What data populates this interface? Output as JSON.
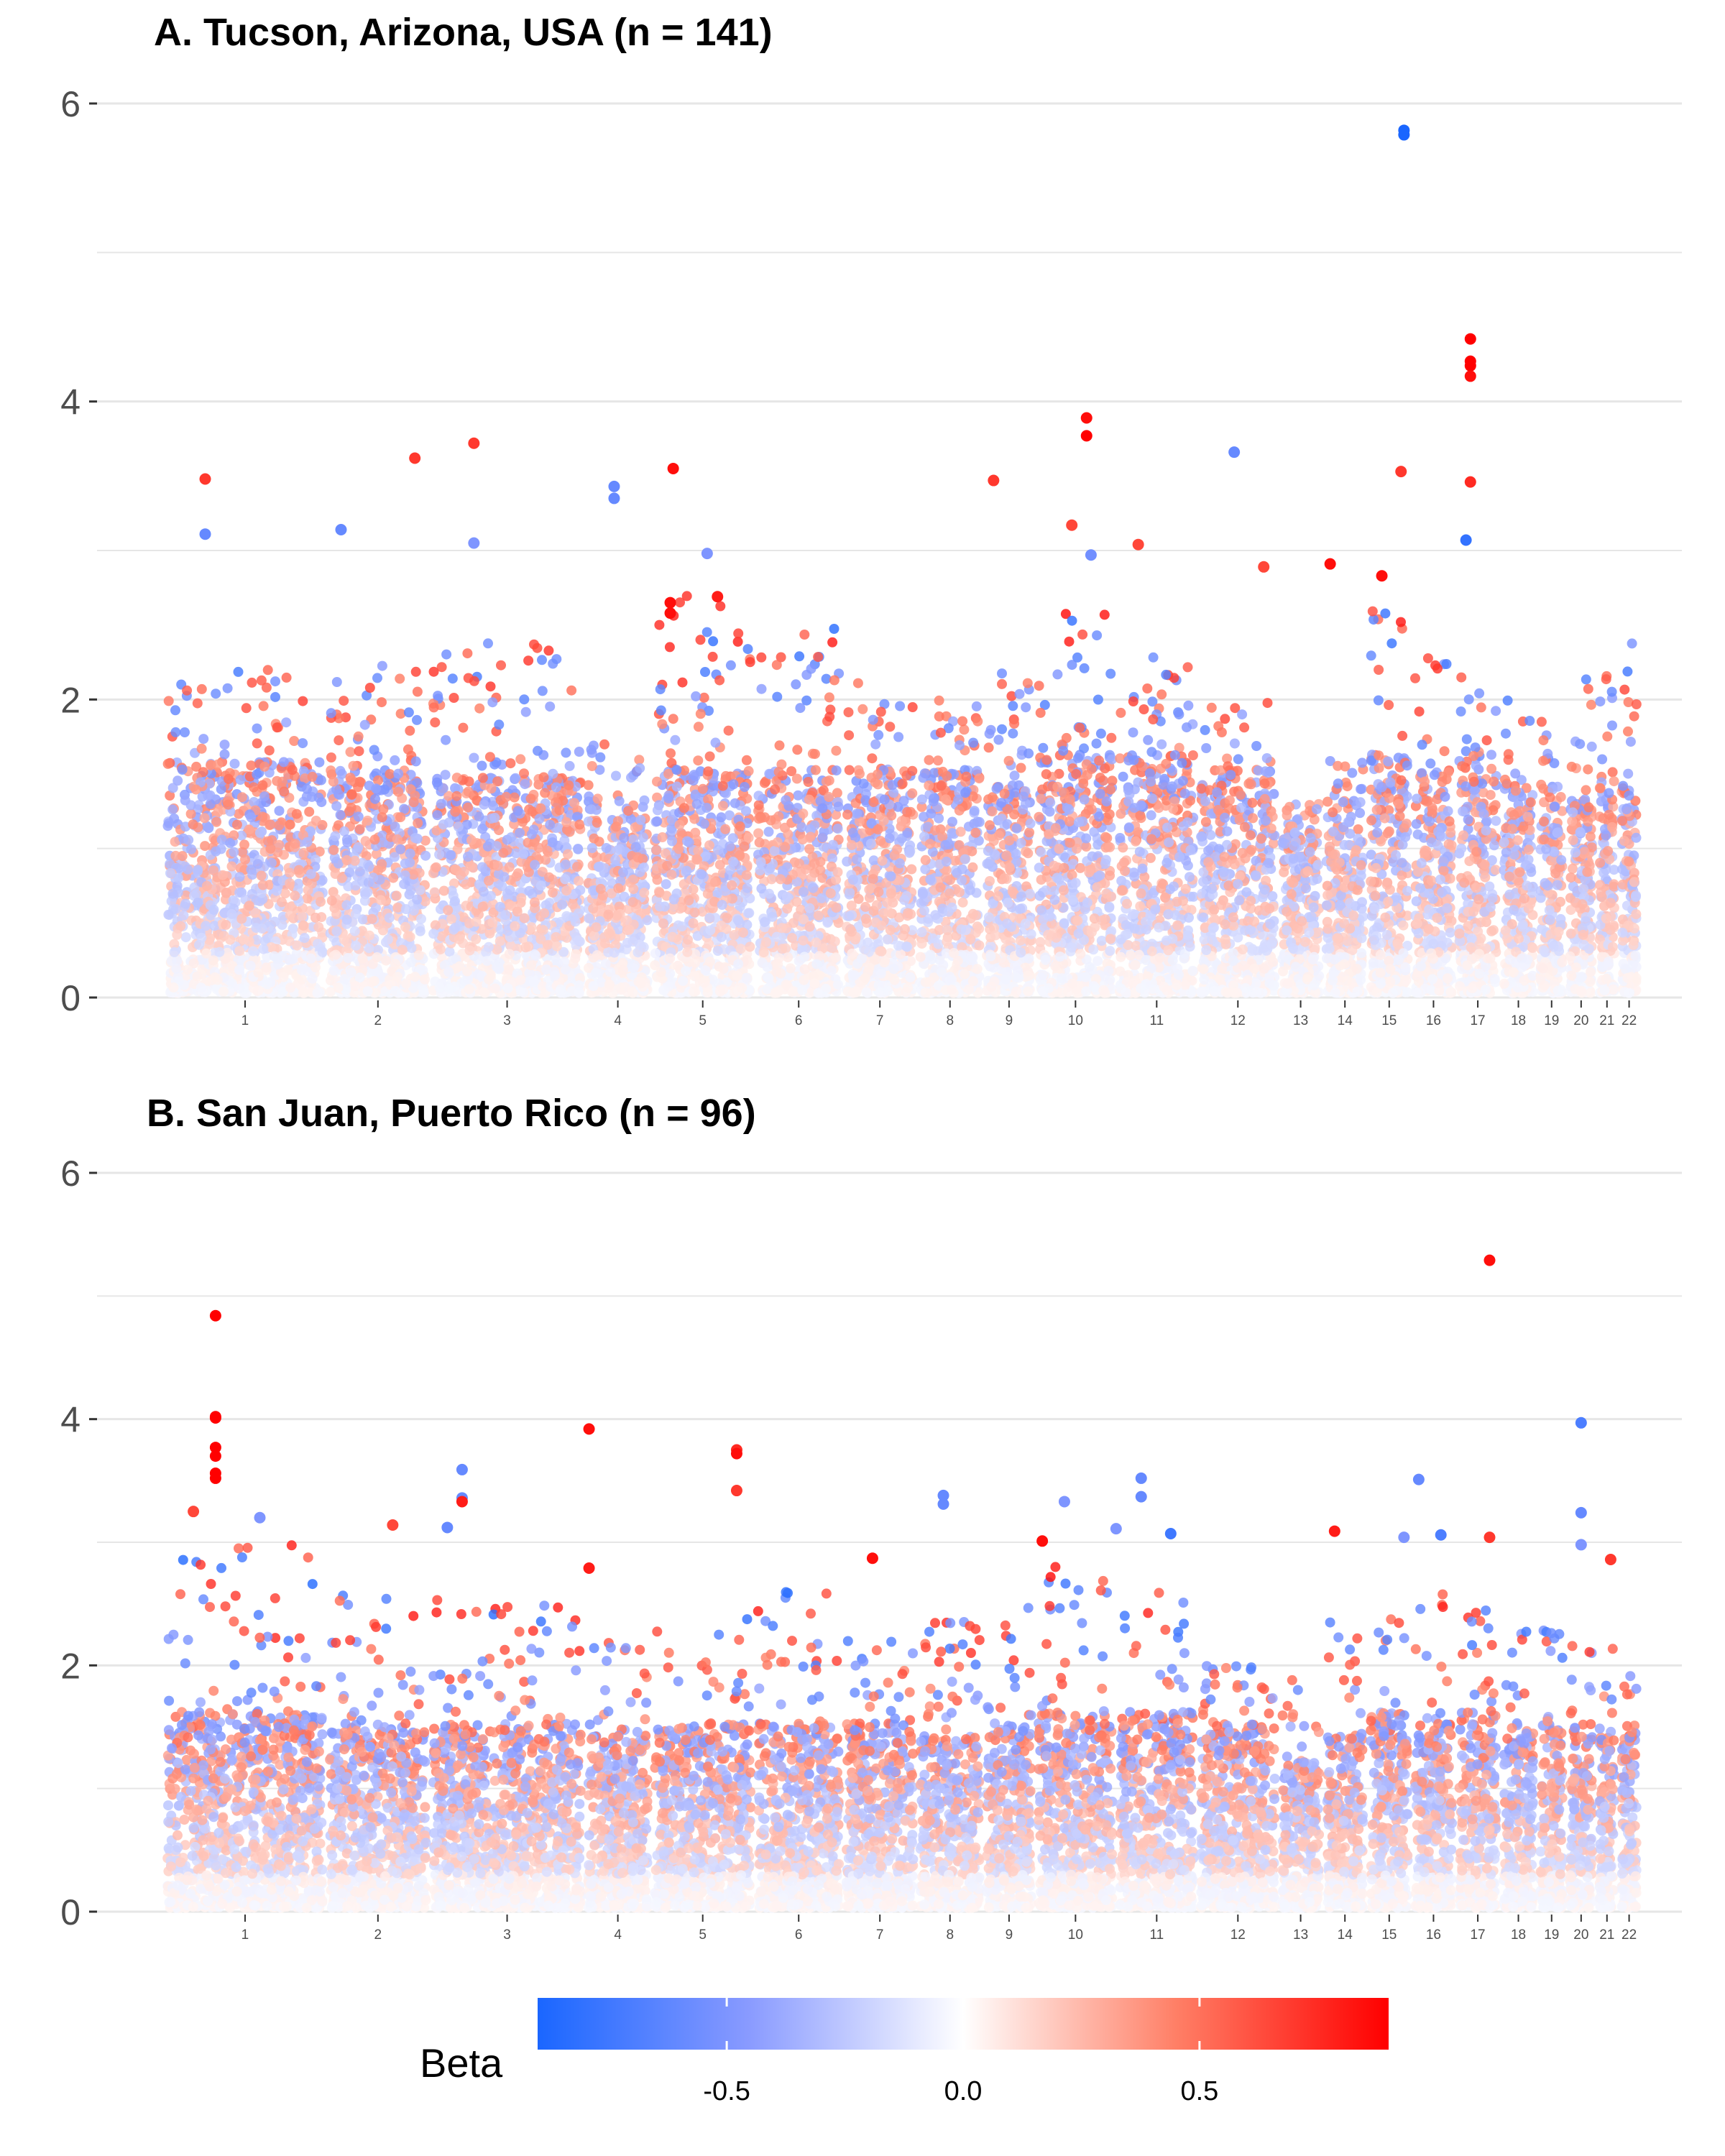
{
  "chart_data": [
    {
      "type": "scatter",
      "title": "A. Tucson, Arizona, USA (n = 141)",
      "xlabel": "",
      "ylabel": "",
      "ylim": [
        0,
        6
      ],
      "y_ticks": [
        0,
        2,
        4,
        6
      ],
      "grid": true,
      "chromosomes": [
        "1",
        "2",
        "3",
        "4",
        "5",
        "6",
        "7",
        "8",
        "9",
        "10",
        "11",
        "12",
        "13",
        "14",
        "15",
        "16",
        "17",
        "18",
        "19",
        "20",
        "21",
        "22"
      ],
      "chromosome_bands": [
        {
          "chr": "1",
          "start": 0.0,
          "end": 11.0,
          "base": 1.55,
          "peak": 2.2
        },
        {
          "chr": "2",
          "start": 11.0,
          "end": 18.0,
          "base": 1.5,
          "peak": 2.25
        },
        {
          "chr": "3",
          "start": 18.0,
          "end": 28.5,
          "base": 1.45,
          "peak": 2.4
        },
        {
          "chr": "4",
          "start": 28.5,
          "end": 33.0,
          "base": 1.3,
          "peak": 1.7
        },
        {
          "chr": "5",
          "start": 33.0,
          "end": 40.0,
          "base": 1.5,
          "peak": 2.7
        },
        {
          "chr": "6",
          "start": 40.0,
          "end": 46.0,
          "base": 1.5,
          "peak": 2.5
        },
        {
          "chr": "7",
          "start": 46.0,
          "end": 51.0,
          "base": 1.5,
          "peak": 2.2
        },
        {
          "chr": "8",
          "start": 51.0,
          "end": 55.5,
          "base": 1.5,
          "peak": 2.0
        },
        {
          "chr": "9",
          "start": 55.5,
          "end": 59.0,
          "base": 1.4,
          "peak": 2.2
        },
        {
          "chr": "10",
          "start": 59.0,
          "end": 64.5,
          "base": 1.6,
          "peak": 2.6
        },
        {
          "chr": "11",
          "start": 64.5,
          "end": 70.0,
          "base": 1.6,
          "peak": 2.3
        },
        {
          "chr": "12",
          "start": 70.0,
          "end": 75.5,
          "base": 1.5,
          "peak": 2.0
        },
        {
          "chr": "13",
          "start": 75.5,
          "end": 78.5,
          "base": 1.1,
          "peak": 1.3
        },
        {
          "chr": "14",
          "start": 78.5,
          "end": 81.5,
          "base": 1.3,
          "peak": 1.6
        },
        {
          "chr": "15",
          "start": 81.5,
          "end": 84.5,
          "base": 1.6,
          "peak": 2.6
        },
        {
          "chr": "16",
          "start": 84.5,
          "end": 87.5,
          "base": 1.5,
          "peak": 2.4
        },
        {
          "chr": "17",
          "start": 87.5,
          "end": 90.5,
          "base": 1.6,
          "peak": 2.2
        },
        {
          "chr": "18",
          "start": 90.5,
          "end": 93.0,
          "base": 1.4,
          "peak": 2.0
        },
        {
          "chr": "19",
          "start": 93.0,
          "end": 95.0,
          "base": 1.4,
          "peak": 1.9
        },
        {
          "chr": "20",
          "start": 95.0,
          "end": 97.0,
          "base": 1.3,
          "peak": 2.2
        },
        {
          "chr": "21",
          "start": 97.0,
          "end": 98.5,
          "base": 1.5,
          "peak": 2.3
        },
        {
          "chr": "22",
          "start": 98.5,
          "end": 100.0,
          "base": 1.4,
          "peak": 2.5
        }
      ],
      "top_hits": [
        {
          "x": 84.0,
          "y": 5.82,
          "beta": -0.9
        },
        {
          "x": 84.0,
          "y": 5.79,
          "beta": -0.9
        },
        {
          "x": 88.5,
          "y": 4.42,
          "beta": 0.9
        },
        {
          "x": 88.5,
          "y": 4.27,
          "beta": 0.9
        },
        {
          "x": 88.5,
          "y": 4.24,
          "beta": 0.9
        },
        {
          "x": 88.5,
          "y": 4.17,
          "beta": 0.85
        },
        {
          "x": 62.5,
          "y": 3.89,
          "beta": 0.85
        },
        {
          "x": 62.5,
          "y": 3.77,
          "beta": 0.9
        },
        {
          "x": 21.0,
          "y": 3.72,
          "beta": 0.7
        },
        {
          "x": 17.0,
          "y": 3.62,
          "beta": 0.7
        },
        {
          "x": 72.5,
          "y": 3.66,
          "beta": -0.6
        },
        {
          "x": 34.5,
          "y": 3.55,
          "beta": 0.85
        },
        {
          "x": 83.8,
          "y": 3.53,
          "beta": 0.7
        },
        {
          "x": 88.5,
          "y": 3.46,
          "beta": 0.75
        },
        {
          "x": 2.8,
          "y": 3.48,
          "beta": 0.7
        },
        {
          "x": 56.2,
          "y": 3.47,
          "beta": 0.7
        },
        {
          "x": 30.5,
          "y": 3.43,
          "beta": -0.6
        },
        {
          "x": 30.5,
          "y": 3.35,
          "beta": -0.6
        },
        {
          "x": 61.5,
          "y": 3.17,
          "beta": 0.65
        },
        {
          "x": 12.0,
          "y": 3.14,
          "beta": -0.6
        },
        {
          "x": 2.8,
          "y": 3.11,
          "beta": -0.6
        },
        {
          "x": 88.2,
          "y": 3.07,
          "beta": -0.8
        },
        {
          "x": 66.0,
          "y": 3.04,
          "beta": 0.65
        },
        {
          "x": 21.0,
          "y": 3.05,
          "beta": -0.5
        },
        {
          "x": 62.8,
          "y": 2.97,
          "beta": -0.55
        },
        {
          "x": 74.5,
          "y": 2.89,
          "beta": 0.65
        },
        {
          "x": 79.0,
          "y": 2.91,
          "beta": 0.85
        },
        {
          "x": 82.5,
          "y": 2.83,
          "beta": 0.85
        },
        {
          "x": 34.3,
          "y": 2.65,
          "beta": 0.85
        },
        {
          "x": 34.3,
          "y": 2.58,
          "beta": 0.85
        },
        {
          "x": 37.5,
          "y": 2.69,
          "beta": 0.8
        },
        {
          "x": 36.8,
          "y": 2.98,
          "beta": -0.5
        }
      ]
    },
    {
      "type": "scatter",
      "title": "B. San Juan, Puerto Rico (n = 96)",
      "xlabel": "",
      "ylabel": "",
      "ylim": [
        0,
        6
      ],
      "y_ticks": [
        0,
        2,
        4,
        6
      ],
      "grid": true,
      "chromosomes": [
        "1",
        "2",
        "3",
        "4",
        "5",
        "6",
        "7",
        "8",
        "9",
        "10",
        "11",
        "12",
        "13",
        "14",
        "15",
        "16",
        "17",
        "18",
        "19",
        "20",
        "21",
        "22"
      ],
      "chromosome_bands": [
        {
          "chr": "1",
          "start": 0.0,
          "end": 11.0,
          "base": 1.6,
          "peak": 3.0
        },
        {
          "chr": "2",
          "start": 11.0,
          "end": 18.0,
          "base": 1.5,
          "peak": 2.6
        },
        {
          "chr": "3",
          "start": 18.0,
          "end": 28.5,
          "base": 1.5,
          "peak": 2.6
        },
        {
          "chr": "4",
          "start": 28.5,
          "end": 33.0,
          "base": 1.4,
          "peak": 2.2
        },
        {
          "chr": "5",
          "start": 33.0,
          "end": 40.0,
          "base": 1.5,
          "peak": 2.4
        },
        {
          "chr": "6",
          "start": 40.0,
          "end": 46.0,
          "base": 1.5,
          "peak": 2.6
        },
        {
          "chr": "7",
          "start": 46.0,
          "end": 51.0,
          "base": 1.5,
          "peak": 2.2
        },
        {
          "chr": "8",
          "start": 51.0,
          "end": 55.5,
          "base": 1.4,
          "peak": 2.4
        },
        {
          "chr": "9",
          "start": 55.5,
          "end": 59.0,
          "base": 1.5,
          "peak": 2.6
        },
        {
          "chr": "10",
          "start": 59.0,
          "end": 64.5,
          "base": 1.6,
          "peak": 2.8
        },
        {
          "chr": "11",
          "start": 64.5,
          "end": 70.0,
          "base": 1.6,
          "peak": 2.8
        },
        {
          "chr": "12",
          "start": 70.0,
          "end": 75.5,
          "base": 1.5,
          "peak": 2.0
        },
        {
          "chr": "13",
          "start": 75.5,
          "end": 78.5,
          "base": 1.2,
          "peak": 1.9
        },
        {
          "chr": "14",
          "start": 78.5,
          "end": 81.5,
          "base": 1.4,
          "peak": 2.4
        },
        {
          "chr": "15",
          "start": 81.5,
          "end": 84.5,
          "base": 1.6,
          "peak": 2.4
        },
        {
          "chr": "16",
          "start": 84.5,
          "end": 87.5,
          "base": 1.5,
          "peak": 2.6
        },
        {
          "chr": "17",
          "start": 87.5,
          "end": 90.5,
          "base": 1.6,
          "peak": 2.5
        },
        {
          "chr": "18",
          "start": 90.5,
          "end": 93.0,
          "base": 1.5,
          "peak": 2.3
        },
        {
          "chr": "19",
          "start": 93.0,
          "end": 95.0,
          "base": 1.5,
          "peak": 2.3
        },
        {
          "chr": "20",
          "start": 95.0,
          "end": 97.0,
          "base": 1.5,
          "peak": 2.2
        },
        {
          "chr": "21",
          "start": 97.0,
          "end": 98.5,
          "base": 1.5,
          "peak": 2.2
        },
        {
          "chr": "22",
          "start": 98.5,
          "end": 100.0,
          "base": 1.4,
          "peak": 2.0
        }
      ],
      "top_hits": [
        {
          "x": 89.8,
          "y": 5.29,
          "beta": 0.85
        },
        {
          "x": 3.5,
          "y": 4.84,
          "beta": 0.9
        },
        {
          "x": 3.5,
          "y": 4.02,
          "beta": 0.9
        },
        {
          "x": 3.5,
          "y": 4.01,
          "beta": 0.9
        },
        {
          "x": 96.0,
          "y": 3.97,
          "beta": -0.7
        },
        {
          "x": 28.8,
          "y": 3.92,
          "beta": 0.85
        },
        {
          "x": 3.5,
          "y": 3.77,
          "beta": 0.9
        },
        {
          "x": 3.5,
          "y": 3.7,
          "beta": 0.9
        },
        {
          "x": 38.8,
          "y": 3.75,
          "beta": 0.75
        },
        {
          "x": 38.8,
          "y": 3.72,
          "beta": 0.85
        },
        {
          "x": 3.5,
          "y": 3.56,
          "beta": 0.9
        },
        {
          "x": 3.5,
          "y": 3.52,
          "beta": 0.9
        },
        {
          "x": 20.2,
          "y": 3.59,
          "beta": -0.6
        },
        {
          "x": 66.2,
          "y": 3.52,
          "beta": -0.6
        },
        {
          "x": 85.0,
          "y": 3.51,
          "beta": -0.6
        },
        {
          "x": 38.8,
          "y": 3.42,
          "beta": 0.7
        },
        {
          "x": 52.8,
          "y": 3.38,
          "beta": -0.6
        },
        {
          "x": 20.2,
          "y": 3.36,
          "beta": -0.6
        },
        {
          "x": 66.2,
          "y": 3.37,
          "beta": -0.6
        },
        {
          "x": 20.2,
          "y": 3.33,
          "beta": 0.8
        },
        {
          "x": 61.0,
          "y": 3.33,
          "beta": -0.5
        },
        {
          "x": 52.8,
          "y": 3.31,
          "beta": -0.6
        },
        {
          "x": 96.0,
          "y": 3.24,
          "beta": -0.6
        },
        {
          "x": 2.0,
          "y": 3.25,
          "beta": 0.65
        },
        {
          "x": 6.5,
          "y": 3.2,
          "beta": -0.5
        },
        {
          "x": 15.5,
          "y": 3.14,
          "beta": 0.65
        },
        {
          "x": 19.2,
          "y": 3.12,
          "beta": -0.6
        },
        {
          "x": 79.3,
          "y": 3.09,
          "beta": 0.8
        },
        {
          "x": 64.5,
          "y": 3.11,
          "beta": -0.5
        },
        {
          "x": 68.2,
          "y": 3.07,
          "beta": -0.75
        },
        {
          "x": 86.5,
          "y": 3.06,
          "beta": -0.7
        },
        {
          "x": 59.5,
          "y": 3.01,
          "beta": 0.85
        },
        {
          "x": 84.0,
          "y": 3.04,
          "beta": -0.5
        },
        {
          "x": 89.8,
          "y": 3.04,
          "beta": 0.7
        },
        {
          "x": 96.0,
          "y": 2.98,
          "beta": -0.5
        },
        {
          "x": 48.0,
          "y": 2.87,
          "beta": 0.85
        },
        {
          "x": 98.0,
          "y": 2.86,
          "beta": 0.7
        },
        {
          "x": 28.8,
          "y": 2.79,
          "beta": 0.8
        }
      ]
    }
  ],
  "legend": {
    "title": "Beta",
    "placement": "bottom",
    "ticks": [
      {
        "value": -0.5,
        "label": "-0.5"
      },
      {
        "value": 0.0,
        "label": "0.0"
      },
      {
        "value": 0.5,
        "label": "0.5"
      }
    ],
    "range": [
      -0.9,
      0.9
    ],
    "colors": {
      "low": "#1a66ff",
      "mid_low": "#8a9bff",
      "mid": "#ffffff",
      "mid_high": "#ff7f66",
      "high": "#ff0000"
    }
  }
}
